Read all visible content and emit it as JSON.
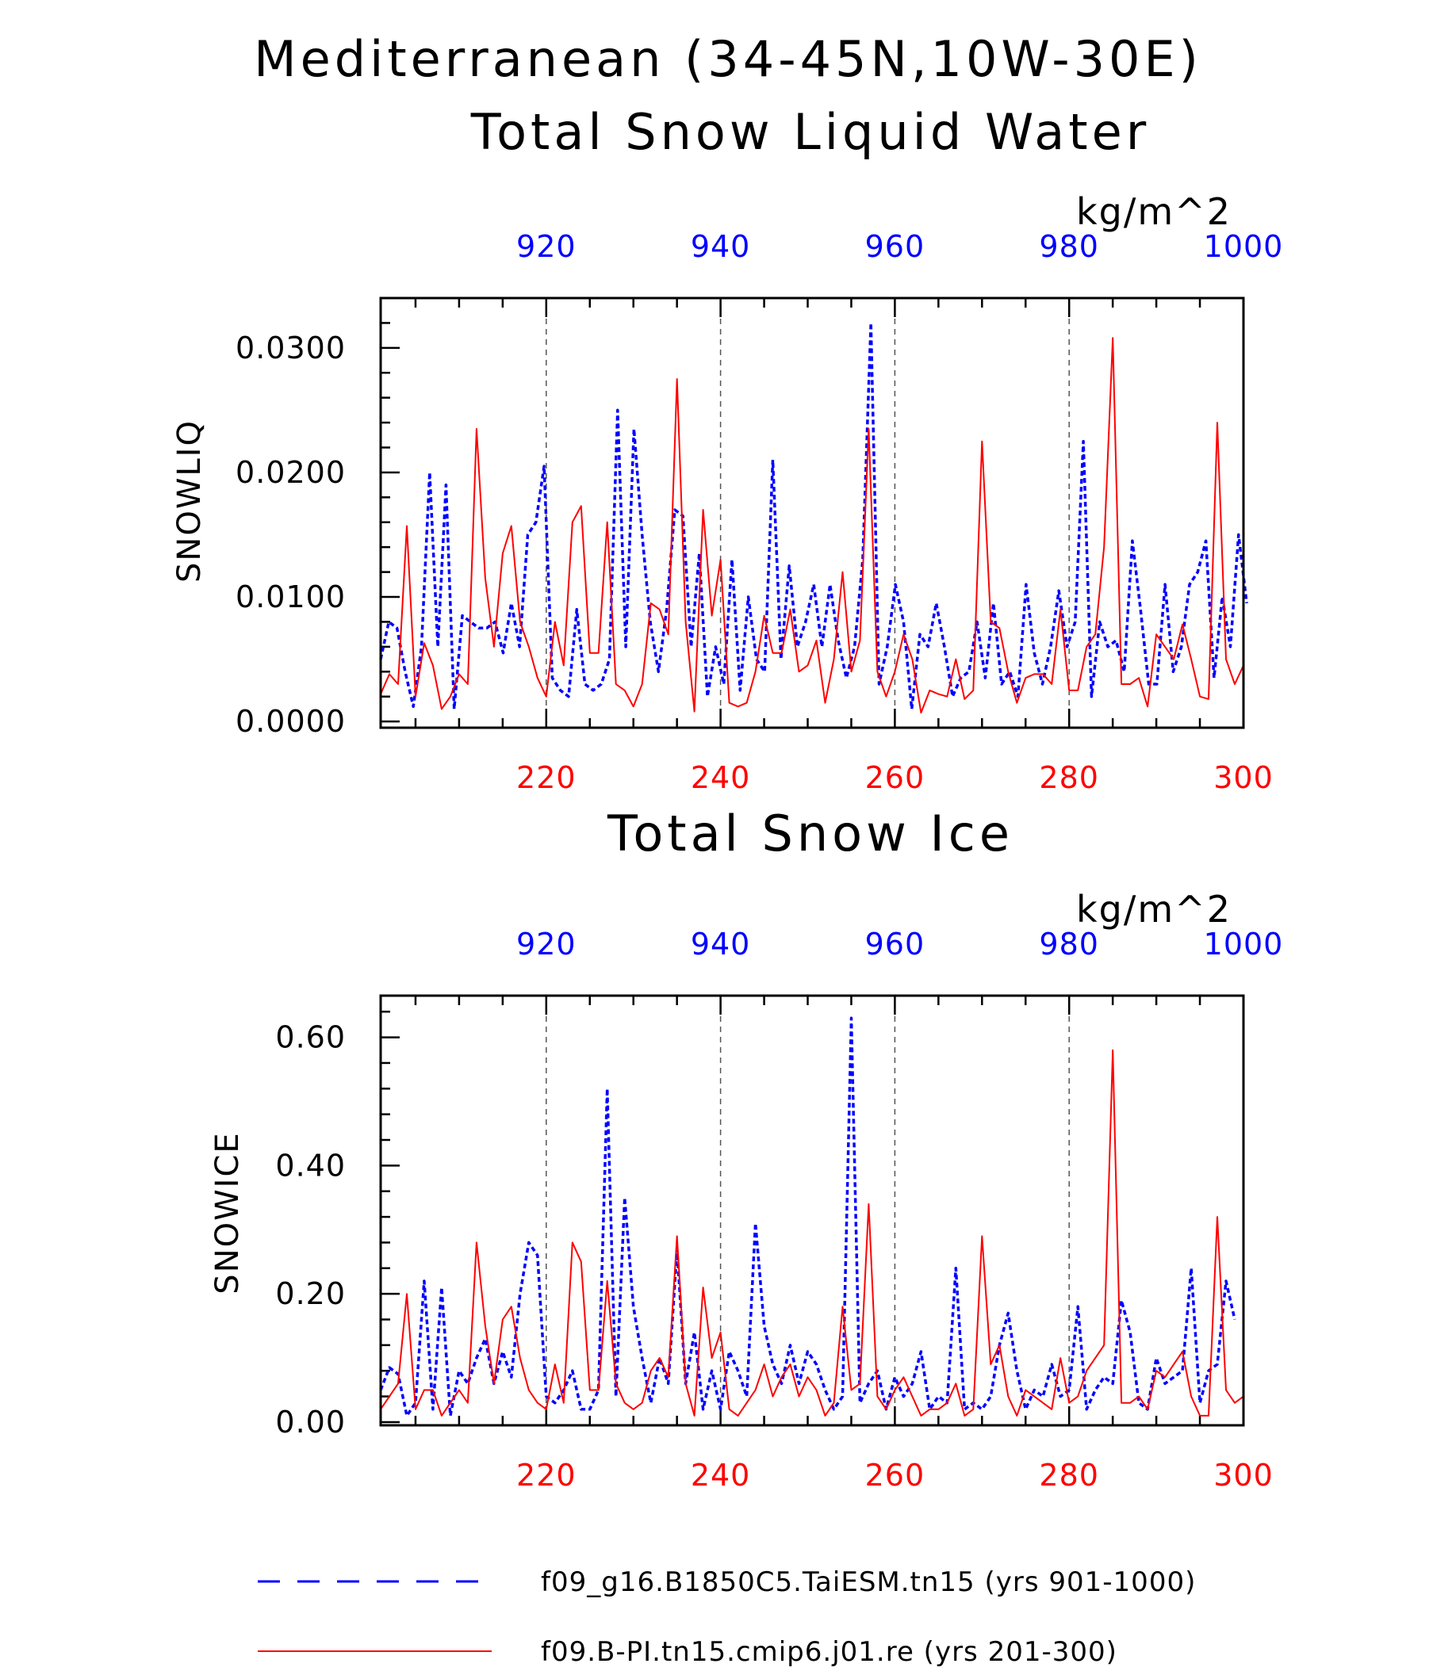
{
  "figure": {
    "title_line1": "Mediterranean (34-45N,10W-30E)",
    "colors": {
      "series_a": "#0000ff",
      "series_b": "#ff0000",
      "axis": "#000000",
      "grid": "#555555"
    }
  },
  "chart_data": [
    {
      "type": "line",
      "title": "Total Snow Liquid Water",
      "units": "kg/m^2",
      "ylabel": "SNOWLIQ",
      "ylim": [
        -0.0005,
        0.034
      ],
      "yticks": [
        0.0,
        0.01,
        0.02,
        0.03
      ],
      "ytick_labels": [
        "0.0000",
        "0.0100",
        "0.0200",
        "0.0300"
      ],
      "grid": "dashed vertical lines at 220, 240, 260, 280",
      "x_bottom": {
        "range": [
          201,
          300
        ],
        "ticks": [
          220,
          240,
          260,
          280,
          300
        ],
        "color": "#ff0000"
      },
      "x_top": {
        "range": [
          901,
          1000
        ],
        "ticks": [
          920,
          940,
          960,
          980,
          1000
        ],
        "color": "#0000ff"
      },
      "series": [
        {
          "name": "f09_g16.B1850C5.TaiESM.tn15 (yrs 901-1000)",
          "axis": "top",
          "style": "dashed",
          "color": "#0000ff",
          "x_start": 901,
          "values": [
            0.005,
            0.008,
            0.0075,
            0.004,
            0.0012,
            0.006,
            0.02,
            0.006,
            0.019,
            0.001,
            0.0085,
            0.008,
            0.0075,
            0.0075,
            0.008,
            0.0055,
            0.0095,
            0.006,
            0.015,
            0.016,
            0.0205,
            0.0035,
            0.0025,
            0.002,
            0.009,
            0.003,
            0.0025,
            0.003,
            0.005,
            0.025,
            0.006,
            0.0235,
            0.015,
            0.008,
            0.004,
            0.009,
            0.017,
            0.0165,
            0.006,
            0.0135,
            0.002,
            0.006,
            0.003,
            0.013,
            0.0025,
            0.01,
            0.005,
            0.004,
            0.021,
            0.005,
            0.0125,
            0.006,
            0.008,
            0.011,
            0.006,
            0.011,
            0.0065,
            0.0035,
            0.006,
            0.013,
            0.032,
            0.003,
            0.006,
            0.011,
            0.008,
            0.001,
            0.007,
            0.006,
            0.0095,
            0.006,
            0.002,
            0.0035,
            0.004,
            0.008,
            0.0035,
            0.0095,
            0.003,
            0.004,
            0.002,
            0.011,
            0.0055,
            0.003,
            0.006,
            0.0105,
            0.006,
            0.008,
            0.0225,
            0.002,
            0.008,
            0.006,
            0.0065,
            0.004,
            0.0145,
            0.009,
            0.003,
            0.003,
            0.011,
            0.004,
            0.006,
            0.011,
            0.012,
            0.0145,
            0.0035,
            0.01,
            0.006,
            0.015,
            0.0095
          ],
          "x_step": 0.9375
        },
        {
          "name": "f09.B-PI.tn15.cmip6.j01.re (yrs 201-300)",
          "axis": "bottom",
          "style": "solid",
          "color": "#ff0000",
          "x_start": 201,
          "values": [
            0.0022,
            0.0038,
            0.003,
            0.0157,
            0.002,
            0.0063,
            0.0045,
            0.001,
            0.002,
            0.0038,
            0.003,
            0.0235,
            0.0115,
            0.006,
            0.0135,
            0.0157,
            0.008,
            0.006,
            0.0035,
            0.002,
            0.008,
            0.0045,
            0.016,
            0.0173,
            0.0055,
            0.0055,
            0.016,
            0.003,
            0.0025,
            0.0012,
            0.003,
            0.0095,
            0.009,
            0.007,
            0.0275,
            0.008,
            0.0008,
            0.017,
            0.0085,
            0.013,
            0.0015,
            0.0012,
            0.0015,
            0.004,
            0.0085,
            0.0055,
            0.0055,
            0.009,
            0.004,
            0.0045,
            0.0065,
            0.0015,
            0.005,
            0.012,
            0.004,
            0.0065,
            0.0235,
            0.004,
            0.002,
            0.004,
            0.007,
            0.005,
            0.0007,
            0.0025,
            0.0022,
            0.002,
            0.005,
            0.0018,
            0.0025,
            0.0225,
            0.008,
            0.0075,
            0.004,
            0.0015,
            0.0035,
            0.0038,
            0.0038,
            0.003,
            0.009,
            0.0025,
            0.0025,
            0.006,
            0.007,
            0.014,
            0.0308,
            0.003,
            0.003,
            0.0035,
            0.0012,
            0.007,
            0.006,
            0.005,
            0.0078,
            0.005,
            0.002,
            0.0018,
            0.024,
            0.005,
            0.003,
            0.0045
          ]
        }
      ]
    },
    {
      "type": "line",
      "title": "Total Snow Ice",
      "units": "kg/m^2",
      "ylabel": "SNOWICE",
      "ylim": [
        -0.005,
        0.665
      ],
      "yticks": [
        0.0,
        0.2,
        0.4,
        0.6
      ],
      "ytick_labels": [
        "0.00",
        "0.20",
        "0.40",
        "0.60"
      ],
      "grid": "dashed vertical lines at 220, 240, 260, 280",
      "x_bottom": {
        "range": [
          201,
          300
        ],
        "ticks": [
          220,
          240,
          260,
          280,
          300
        ],
        "color": "#ff0000"
      },
      "x_top": {
        "range": [
          901,
          1000
        ],
        "ticks": [
          920,
          940,
          960,
          980,
          1000
        ],
        "color": "#0000ff"
      },
      "series": [
        {
          "name": "f09_g16.B1850C5.TaiESM.tn15 (yrs 901-1000)",
          "axis": "top",
          "style": "dashed",
          "color": "#0000ff",
          "x_start": 901,
          "values": [
            0.05,
            0.085,
            0.075,
            0.01,
            0.03,
            0.22,
            0.02,
            0.21,
            0.01,
            0.08,
            0.06,
            0.1,
            0.13,
            0.06,
            0.11,
            0.07,
            0.2,
            0.28,
            0.26,
            0.04,
            0.03,
            0.05,
            0.08,
            0.02,
            0.02,
            0.05,
            0.52,
            0.04,
            0.35,
            0.18,
            0.1,
            0.03,
            0.1,
            0.06,
            0.27,
            0.06,
            0.14,
            0.02,
            0.08,
            0.02,
            0.11,
            0.08,
            0.04,
            0.31,
            0.15,
            0.09,
            0.06,
            0.12,
            0.06,
            0.11,
            0.09,
            0.05,
            0.02,
            0.04,
            0.63,
            0.03,
            0.06,
            0.08,
            0.02,
            0.07,
            0.04,
            0.06,
            0.11,
            0.02,
            0.04,
            0.03,
            0.24,
            0.02,
            0.03,
            0.02,
            0.04,
            0.12,
            0.17,
            0.08,
            0.02,
            0.05,
            0.04,
            0.09,
            0.04,
            0.05,
            0.18,
            0.02,
            0.05,
            0.07,
            0.06,
            0.19,
            0.14,
            0.03,
            0.02,
            0.1,
            0.06,
            0.07,
            0.08,
            0.24,
            0.03,
            0.08,
            0.09,
            0.22,
            0.16
          ]
        },
        {
          "name": "f09.B-PI.tn15.cmip6.j01.re (yrs 201-300)",
          "axis": "bottom",
          "style": "solid",
          "color": "#ff0000",
          "x_start": 201,
          "values": [
            0.02,
            0.04,
            0.06,
            0.2,
            0.02,
            0.05,
            0.05,
            0.01,
            0.03,
            0.05,
            0.03,
            0.28,
            0.15,
            0.06,
            0.16,
            0.18,
            0.1,
            0.05,
            0.03,
            0.02,
            0.09,
            0.03,
            0.28,
            0.25,
            0.05,
            0.05,
            0.22,
            0.06,
            0.03,
            0.02,
            0.03,
            0.08,
            0.1,
            0.07,
            0.29,
            0.06,
            0.01,
            0.21,
            0.1,
            0.14,
            0.02,
            0.01,
            0.03,
            0.05,
            0.09,
            0.04,
            0.07,
            0.09,
            0.04,
            0.07,
            0.05,
            0.01,
            0.03,
            0.18,
            0.05,
            0.06,
            0.34,
            0.04,
            0.02,
            0.05,
            0.07,
            0.04,
            0.01,
            0.02,
            0.02,
            0.03,
            0.06,
            0.01,
            0.02,
            0.29,
            0.09,
            0.12,
            0.04,
            0.01,
            0.05,
            0.04,
            0.03,
            0.02,
            0.1,
            0.03,
            0.04,
            0.08,
            0.1,
            0.12,
            0.58,
            0.03,
            0.03,
            0.04,
            0.02,
            0.08,
            0.07,
            0.09,
            0.11,
            0.04,
            0.01,
            0.01,
            0.32,
            0.05,
            0.03,
            0.04
          ]
        }
      ]
    }
  ],
  "legend": [
    {
      "label": "f09_g16.B1850C5.TaiESM.tn15 (yrs 901-1000)",
      "style": "dashed",
      "color": "#0000ff"
    },
    {
      "label": "f09.B-PI.tn15.cmip6.j01.re (yrs 201-300)",
      "style": "solid",
      "color": "#ff0000"
    }
  ]
}
